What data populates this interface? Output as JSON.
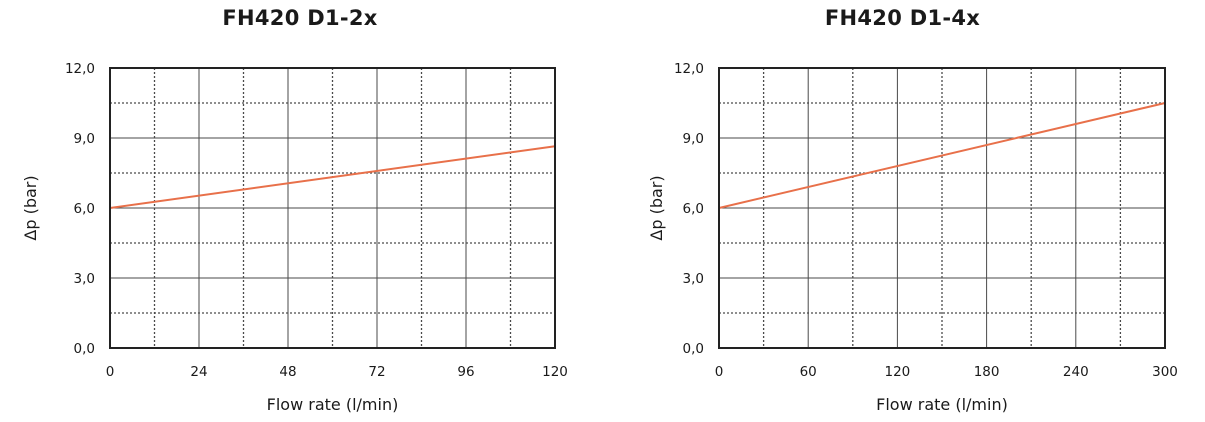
{
  "colors": {
    "curve": "#e8704a",
    "grid": "#4a4a4a",
    "frame": "#222222",
    "text": "#1a1a1a"
  },
  "chart_data": [
    {
      "type": "line",
      "title": "FH420 D1-2x",
      "xlabel": "Flow rate (l/min)",
      "ylabel": "Δp (bar)",
      "xlim": [
        0,
        120
      ],
      "ylim": [
        0,
        12
      ],
      "x_ticks": [
        0,
        24,
        48,
        72,
        96,
        120
      ],
      "x_tick_labels": [
        "0",
        "24",
        "48",
        "72",
        "96",
        "120"
      ],
      "y_ticks": [
        0,
        3,
        6,
        9,
        12
      ],
      "y_tick_labels": [
        "0,0",
        "3,0",
        "6,0",
        "9,0",
        "12,0"
      ],
      "x_minor_step": 12,
      "y_minor_step": 1.5,
      "grid": true,
      "series": [
        {
          "x": [
            0,
            120
          ],
          "y": [
            6.0,
            8.65
          ]
        }
      ]
    },
    {
      "type": "line",
      "title": "FH420 D1-4x",
      "xlabel": "Flow rate (l/min)",
      "ylabel": "Δp (bar)",
      "xlim": [
        0,
        300
      ],
      "ylim": [
        0,
        12
      ],
      "x_ticks": [
        0,
        60,
        120,
        180,
        240,
        300
      ],
      "x_tick_labels": [
        "0",
        "60",
        "120",
        "180",
        "240",
        "300"
      ],
      "y_ticks": [
        0,
        3,
        6,
        9,
        12
      ],
      "y_tick_labels": [
        "0,0",
        "3,0",
        "6,0",
        "9,0",
        "12,0"
      ],
      "x_minor_step": 30,
      "y_minor_step": 1.5,
      "grid": true,
      "series": [
        {
          "x": [
            0,
            300
          ],
          "y": [
            6.0,
            10.5
          ]
        }
      ]
    }
  ]
}
